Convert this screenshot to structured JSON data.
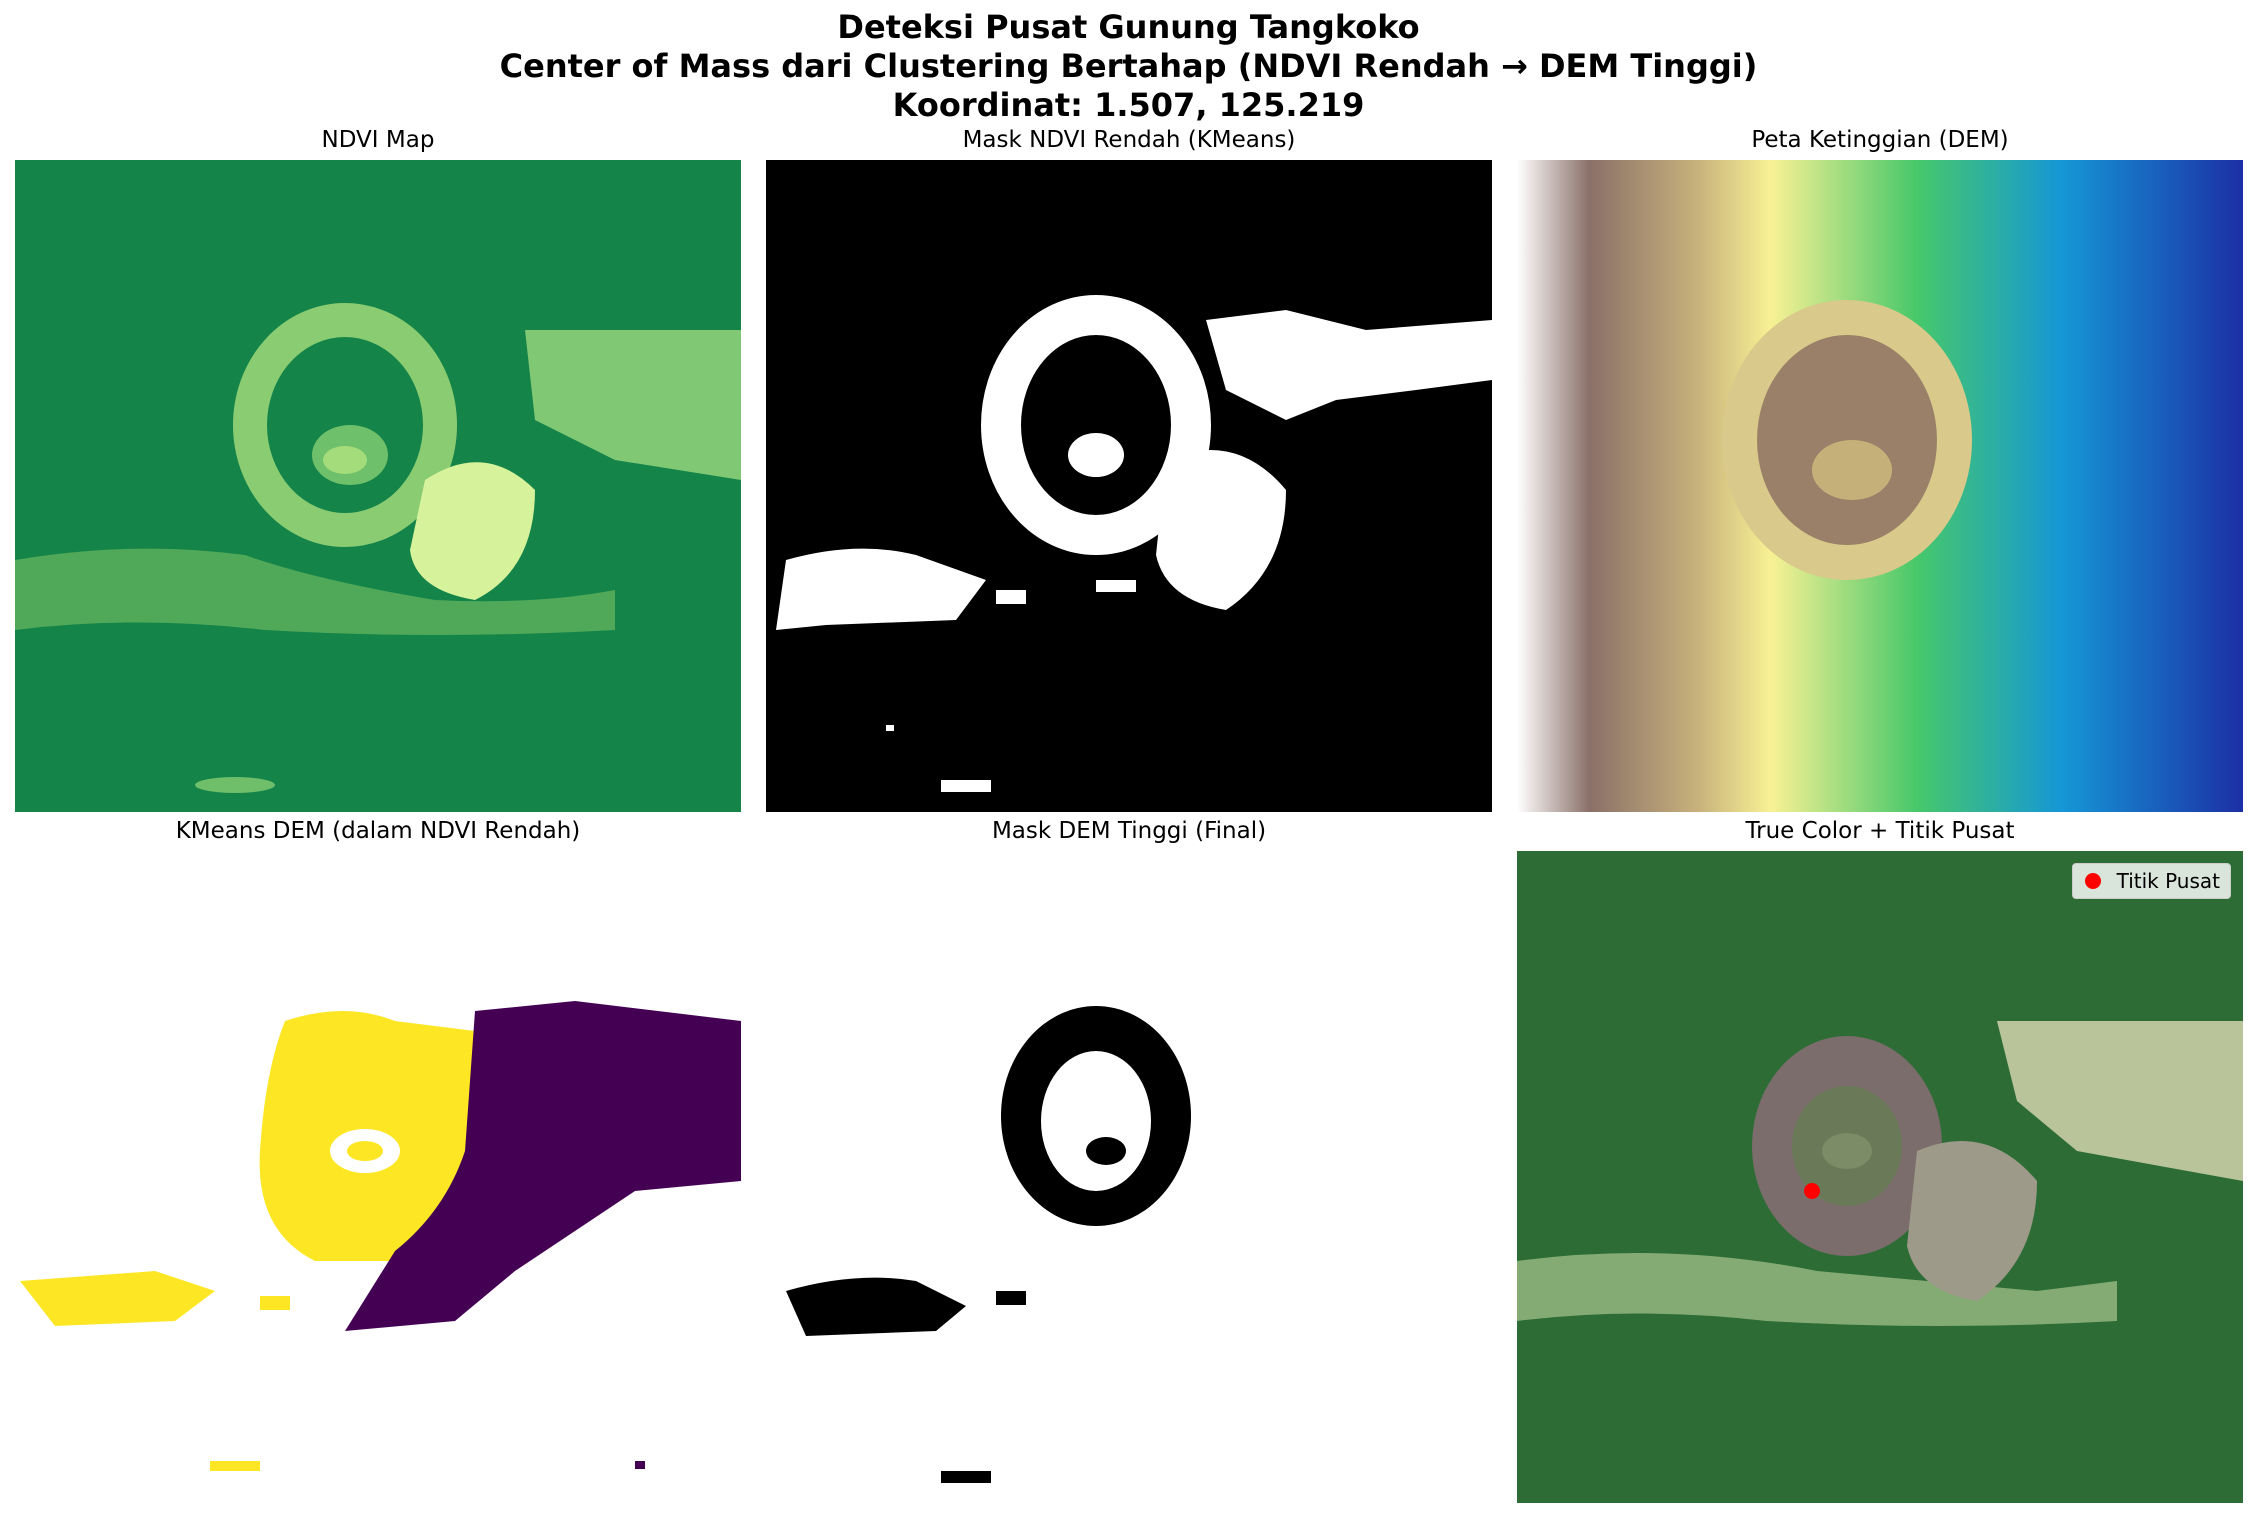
{
  "figure": {
    "title_line1": "Deteksi Pusat Gunung Tangkoko",
    "title_line2": "Center of Mass dari Clustering Bertahap (NDVI Rendah → DEM Tinggi)",
    "title_line3": "Koordinat: 1.507, 125.219"
  },
  "panels": [
    {
      "title": "NDVI Map"
    },
    {
      "title": "Mask NDVI Rendah (KMeans)"
    },
    {
      "title": "Peta Ketinggian (DEM)"
    },
    {
      "title": "KMeans DEM (dalam NDVI Rendah)"
    },
    {
      "title": "Mask DEM Tinggi (Final)"
    },
    {
      "title": "True Color + Titik Pusat"
    }
  ],
  "legend": {
    "label": "Titik Pusat",
    "marker_color": "#ff0000"
  },
  "colors": {
    "ndvi_low": "#a6e089",
    "ndvi_high": "#0e8044",
    "mask_on": "#ffffff",
    "mask_off": "#000000",
    "cluster_a": "#fde725",
    "cluster_b": "#440154",
    "dem_low": "#1c2da8",
    "dem_mid": "#f6f196",
    "dem_high": "#ffffff"
  }
}
